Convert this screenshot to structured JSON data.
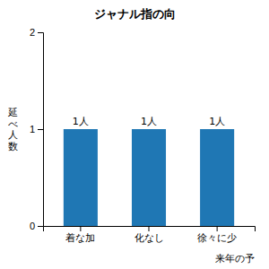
{
  "chart_data": {
    "type": "bar",
    "title": "ジャナル指の向",
    "categories": [
      "着な加",
      "化なし",
      "徐々に少"
    ],
    "values": [
      1,
      1,
      1
    ],
    "value_labels": [
      "1人",
      "1人",
      "1人"
    ],
    "data_labels": true,
    "ylabel": "延\nべ\n人\n数",
    "annotation": "来年の予",
    "ylim": [
      0,
      2
    ],
    "yticks": [
      0,
      1,
      2
    ]
  }
}
